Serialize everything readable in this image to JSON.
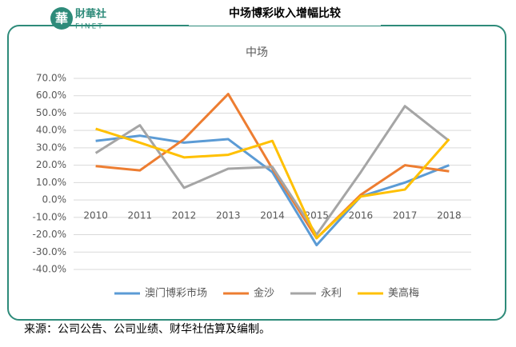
{
  "header": {
    "logo_mark": "華",
    "logo_cn": "財華社",
    "logo_en": "FINET",
    "title": "中场博彩收入增幅比较"
  },
  "chart_data": {
    "type": "line",
    "title": "中场",
    "categories": [
      "2010",
      "2011",
      "2012",
      "2013",
      "2014",
      "2015",
      "2016",
      "2017",
      "2018"
    ],
    "series": [
      {
        "name": "澳门博彩市场",
        "color": "#5b9bd5",
        "values": [
          34,
          37,
          33,
          35,
          16,
          -26,
          2,
          10,
          20
        ]
      },
      {
        "name": "金沙",
        "color": "#ed7d31",
        "values": [
          19.5,
          17,
          35,
          61,
          18,
          -22,
          3,
          20,
          16.5
        ]
      },
      {
        "name": "永利",
        "color": "#a5a5a5",
        "values": [
          27,
          43,
          7,
          18,
          19,
          -20,
          16,
          54,
          34
        ]
      },
      {
        "name": "美高梅",
        "color": "#ffc000",
        "values": [
          41,
          33,
          24.5,
          26,
          34,
          -22,
          2,
          6,
          35
        ]
      }
    ],
    "ylim": [
      -40,
      70
    ],
    "yticks": [
      {
        "value": -40,
        "label": "-40.0%"
      },
      {
        "value": -30,
        "label": "-30.0%"
      },
      {
        "value": -20,
        "label": "-20.0%"
      },
      {
        "value": -10,
        "label": "-10.0%"
      },
      {
        "value": 0,
        "label": "0.0%"
      },
      {
        "value": 10,
        "label": "10.0%"
      },
      {
        "value": 20,
        "label": "20.0%"
      },
      {
        "value": 30,
        "label": "30.0%"
      },
      {
        "value": 40,
        "label": "40.0%"
      },
      {
        "value": 50,
        "label": "50.0%"
      },
      {
        "value": 60,
        "label": "60.0%"
      },
      {
        "value": 70,
        "label": "70.0%"
      }
    ],
    "grid": true,
    "legend": "bottom"
  },
  "footer": {
    "source": "来源：公司公告、公司业绩、财华社估算及编制。"
  }
}
